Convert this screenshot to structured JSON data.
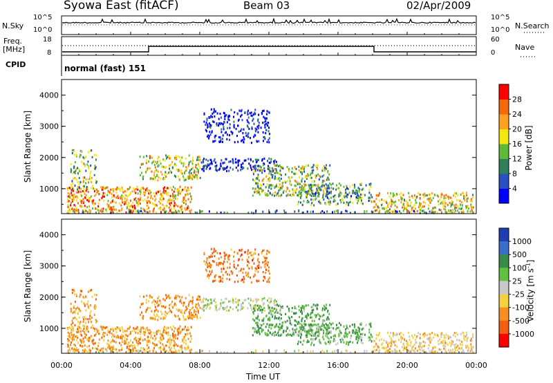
{
  "header": {
    "title": "Syowa East (fitACF)",
    "beam": "Beam 03",
    "date": "02/Apr/2009"
  },
  "top_panels": {
    "nsky": {
      "label": "N.Sky",
      "tick_high": "10^5",
      "tick_low": "10^0"
    },
    "nsearch": {
      "label": "N.Search",
      "tick_high": "10^5",
      "tick_low": "10^0"
    },
    "freq": {
      "label_1": "Freq.",
      "label_2": "[MHz]",
      "tick_high": "18",
      "tick_low": "8"
    },
    "nave": {
      "label": "Nave",
      "tick_high": "60",
      "tick_low": "0"
    },
    "cpid": {
      "label": "CPID",
      "value": "normal (fast) 151"
    }
  },
  "chart_data": [
    {
      "type": "heatmap",
      "name": "power",
      "ylabel": "Slant Range [km]",
      "ylim": [
        200,
        4500
      ],
      "yticks": [
        "1000",
        "2000",
        "3000",
        "4000"
      ],
      "xlim": [
        0,
        24
      ],
      "xticks": [
        "00:00",
        "04:00",
        "08:00",
        "12:00",
        "16:00",
        "20:00",
        "00:00"
      ],
      "xlabel": "Time UT",
      "colorbar": {
        "label": "Power [dB]",
        "ticks": [
          "4",
          "8",
          "12",
          "16",
          "20",
          "24",
          "28"
        ],
        "colors": [
          "#0000ff",
          "#2a4fc0",
          "#2f7f5a",
          "#5fba3a",
          "#f5e60f",
          "#ffa020",
          "#f56a08",
          "#ff0000"
        ]
      }
    },
    {
      "type": "heatmap",
      "name": "velocity",
      "ylabel": "Slant Range [km]",
      "ylim": [
        200,
        4500
      ],
      "yticks": [
        "1000",
        "2000",
        "3000",
        "4000"
      ],
      "xlim": [
        0,
        24
      ],
      "xticks": [
        "00:00",
        "04:00",
        "08:00",
        "12:00",
        "16:00",
        "20:00",
        "00:00"
      ],
      "xlabel": "Time UT",
      "colorbar": {
        "label": "Velocity [m s",
        "label_sup": "-1",
        "label_end": "]",
        "ticks": [
          "1000",
          "500",
          "100",
          "25",
          "-25",
          "-100",
          "-500",
          "-1000"
        ],
        "colors": [
          "#1f3fb0",
          "#3a6fc8",
          "#3a8a4a",
          "#60c040",
          "#c8c8c8",
          "#f5d040",
          "#f59020",
          "#f06010",
          "#ff0000"
        ]
      }
    }
  ]
}
